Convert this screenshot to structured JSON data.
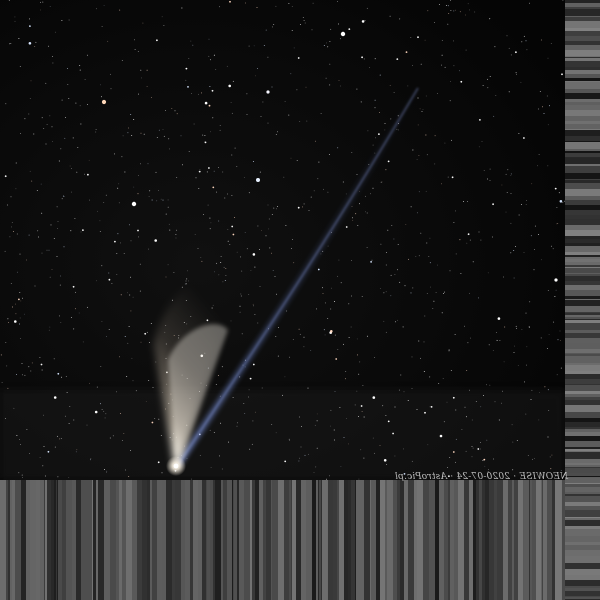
{
  "image": {
    "subject": "Comet NEOWISE in a starry night sky",
    "caption_text": "NEOWISE · 2020-07-24 · AstroPic.pl",
    "caption_mirrored": true
  },
  "colors": {
    "sky": "#070707",
    "dust_tail": "#e6dccb",
    "ion_tail": "#6f86c9",
    "coma": "#fff8ec",
    "border_streaks": "#8a8a8a"
  }
}
